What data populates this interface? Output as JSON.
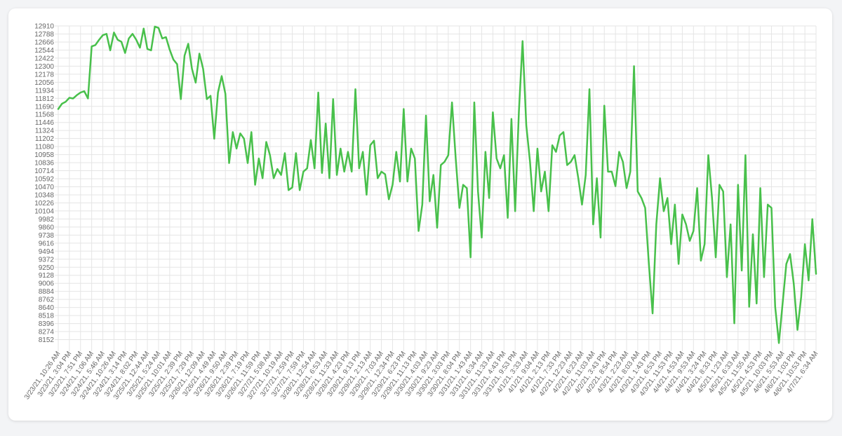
{
  "chart_data": {
    "type": "line",
    "color": "#48c04b",
    "grid": true,
    "ylim": [
      8030,
      12910
    ],
    "yticks": [
      8152,
      8274,
      8396,
      8518,
      8640,
      8762,
      8884,
      9006,
      9128,
      9250,
      9372,
      9494,
      9616,
      9738,
      9860,
      9982,
      10104,
      10226,
      10348,
      10470,
      10592,
      10714,
      10836,
      10958,
      11080,
      11202,
      11324,
      11446,
      11568,
      11690,
      11812,
      11934,
      12056,
      12178,
      12300,
      12422,
      12544,
      12666,
      12788,
      12910
    ],
    "categories": [
      "3/23/21, 10:26 AM",
      null,
      null,
      "3/23/21, 3:04 PM",
      null,
      null,
      "3/23/21, 7:51 PM",
      null,
      null,
      "3/24/21, 1:06 AM",
      null,
      null,
      "3/24/21, 5:46 AM",
      null,
      null,
      "3/24/21, 10:26 AM",
      null,
      null,
      "3/24/21, 3:14 PM",
      null,
      null,
      "3/24/21, 8:02 PM",
      null,
      null,
      "3/25/21, 12:44 AM",
      null,
      null,
      "3/25/21, 5:24 AM",
      null,
      null,
      "3/25/21, 10:01 AM",
      null,
      null,
      "3/25/21, 2:39 PM",
      null,
      null,
      "3/25/21, 7:29 PM",
      null,
      null,
      "3/26/21, 12:09 AM",
      null,
      null,
      "3/26/21, 4:49 AM",
      null,
      null,
      "3/26/21, 9:50 AM",
      null,
      null,
      "3/26/21, 2:39 PM",
      null,
      null,
      "3/26/21, 7:19 PM",
      null,
      null,
      "3/26/21, 11:59 PM",
      null,
      null,
      "3/27/21, 5:08 AM",
      null,
      null,
      "3/27/21, 10:19 AM",
      null,
      null,
      "3/27/21, 2:59 PM",
      null,
      null,
      "3/27/21, 7:59 PM",
      null,
      null,
      "3/28/21, 12:54 AM",
      null,
      null,
      "3/28/21, 6:53 AM",
      null,
      null,
      "3/28/21, 11:33 AM",
      null,
      null,
      "3/28/21, 4:23 PM",
      null,
      null,
      "3/28/21, 9:13 PM",
      null,
      null,
      "3/29/21, 2:13 AM",
      null,
      null,
      "3/29/21, 7:03 AM",
      null,
      null,
      "3/29/21, 12:34 PM",
      null,
      null,
      "3/29/21, 6:23 PM",
      null,
      null,
      "3/29/21, 11:13 PM",
      null,
      null,
      "3/30/21, 4:03 AM",
      null,
      null,
      "3/30/21, 9:23 AM",
      null,
      null,
      "3/30/21, 3:03 PM",
      null,
      null,
      "3/30/21, 8:04 PM",
      null,
      null,
      "3/31/21, 1:43 AM",
      null,
      null,
      "3/31/21, 6:34 AM",
      null,
      null,
      "3/31/21, 11:33 AM",
      null,
      null,
      "3/31/21, 4:43 PM",
      null,
      null,
      "3/31/21, 9:53 PM",
      null,
      null,
      "4/1/21, 3:33 AM",
      null,
      null,
      "4/1/21, 9:04 AM",
      null,
      null,
      "4/1/21, 2:13 PM",
      null,
      null,
      "4/1/21, 7:33 PM",
      null,
      null,
      "4/2/21, 12:23 AM",
      null,
      null,
      "4/2/21, 6:23 AM",
      null,
      null,
      "4/2/21, 11:03 AM",
      null,
      null,
      "4/2/21, 3:43 PM",
      null,
      null,
      "4/2/21, 8:54 PM",
      null,
      null,
      "4/3/21, 2:23 AM",
      null,
      null,
      "4/3/21, 8:03 AM",
      null,
      null,
      "4/3/21, 1:43 PM",
      null,
      null,
      "4/3/21, 6:53 PM",
      null,
      null,
      "4/3/21, 11:53 PM",
      null,
      null,
      "4/4/21, 4:53 AM",
      null,
      null,
      "4/4/21, 9:53 AM",
      null,
      null,
      "4/4/21, 3:24 PM",
      null,
      null,
      "4/4/21, 8:33 PM",
      null,
      null,
      "4/5/21, 1:23 AM",
      null,
      null,
      "4/5/21, 6:33 AM",
      null,
      null,
      "4/5/21, 11:55 AM",
      null,
      null,
      "4/5/21, 4:53 PM",
      null,
      null,
      "4/5/21, 10:03 PM",
      null,
      null,
      "4/6/21, 5:53 AM",
      null,
      null,
      "4/6/21, 1:03 PM",
      null,
      null,
      "4/6/21, 10:53 PM",
      null,
      null,
      "4/7/21, 6:34 AM"
    ],
    "values": [
      11650,
      11730,
      11760,
      11820,
      11810,
      11860,
      11900,
      11920,
      11810,
      12600,
      12620,
      12700,
      12770,
      12790,
      12540,
      12810,
      12700,
      12670,
      12500,
      12720,
      12790,
      12700,
      12580,
      12870,
      12560,
      12540,
      12900,
      12880,
      12720,
      12740,
      12550,
      12400,
      12330,
      11800,
      12460,
      12640,
      12260,
      12050,
      12490,
      12260,
      11800,
      11850,
      11200,
      11900,
      12150,
      11880,
      10830,
      11300,
      11050,
      11280,
      11200,
      10830,
      11300,
      10500,
      10900,
      10600,
      11150,
      10950,
      10600,
      10740,
      10650,
      10980,
      10420,
      10460,
      10980,
      10420,
      10700,
      10750,
      11180,
      10750,
      11900,
      10680,
      11430,
      10600,
      11800,
      10650,
      11050,
      10700,
      11000,
      10700,
      11950,
      10750,
      11000,
      10350,
      11100,
      11170,
      10600,
      10700,
      10660,
      10280,
      10500,
      11000,
      10550,
      11650,
      10550,
      11050,
      10900,
      9800,
      10200,
      11550,
      10250,
      10650,
      9850,
      10800,
      10850,
      10950,
      11750,
      10900,
      10150,
      10500,
      10450,
      9400,
      11750,
      10400,
      9700,
      11000,
      10300,
      11600,
      10900,
      10750,
      10950,
      10000,
      11500,
      10100,
      11600,
      12680,
      11400,
      10850,
      10100,
      11050,
      10400,
      10700,
      10100,
      11100,
      11000,
      11250,
      11300,
      10800,
      10850,
      10950,
      10600,
      10200,
      10650,
      11950,
      9900,
      10600,
      9700,
      11700,
      10700,
      10700,
      10480,
      11000,
      10850,
      10450,
      10700,
      12300,
      10400,
      10300,
      10150,
      9300,
      8550,
      9900,
      10600,
      10100,
      10300,
      9600,
      10200,
      9300,
      10050,
      9900,
      9650,
      9800,
      10450,
      9350,
      9600,
      10950,
      10300,
      9400,
      10500,
      10400,
      9100,
      9900,
      8400,
      10500,
      9200,
      10950,
      8650,
      9750,
      8700,
      10450,
      9100,
      10200,
      10150,
      8650,
      8100,
      8700,
      9300,
      9450,
      9000,
      8300,
      8800,
      9600,
      9050,
      9980,
      9150
    ]
  }
}
